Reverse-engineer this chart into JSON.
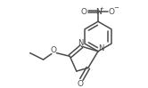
{
  "bg_color": "#ffffff",
  "line_color": "#4a4a4a",
  "line_width": 1.1,
  "figsize": [
    1.66,
    0.99
  ],
  "dpi": 100,
  "xlim": [
    0,
    166
  ],
  "ylim": [
    0,
    99
  ]
}
